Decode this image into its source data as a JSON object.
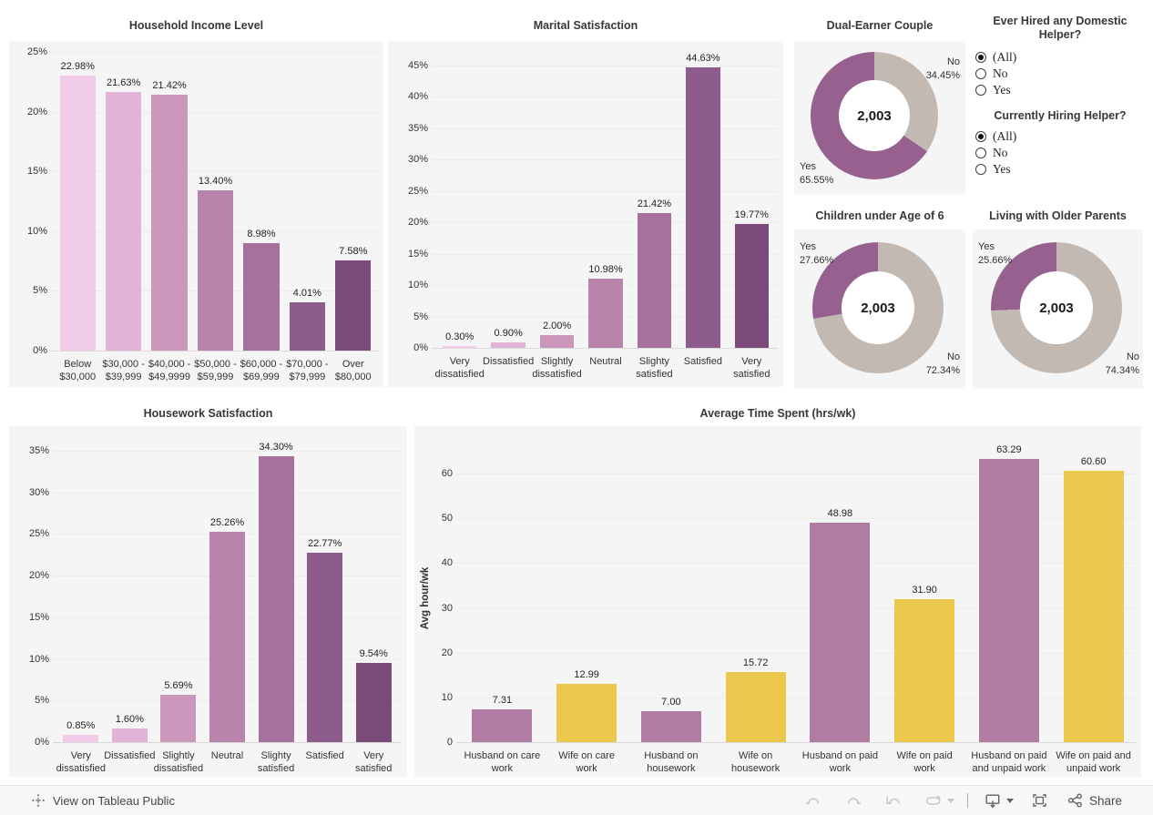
{
  "chart_data": [
    {
      "id": "income",
      "type": "bar",
      "title": "Household Income Level",
      "categories": [
        [
          "Below",
          "$30,000"
        ],
        [
          "$30,000 -",
          "$39,999"
        ],
        [
          "$40,000 -",
          "$49,9999"
        ],
        [
          "$50,000 -",
          "$59,999"
        ],
        [
          "$60,000 -",
          "$69,999"
        ],
        [
          "$70,000 -",
          "$79,999"
        ],
        [
          "Over",
          "$80,000"
        ]
      ],
      "values": [
        22.98,
        21.63,
        21.42,
        13.4,
        8.98,
        4.01,
        7.58
      ],
      "value_labels": [
        "22.98%",
        "21.63%",
        "21.42%",
        "13.40%",
        "8.98%",
        "4.01%",
        "7.58%"
      ],
      "ytick_values": [
        0,
        5,
        10,
        15,
        20,
        25
      ],
      "ytick_labels": [
        "0%",
        "5%",
        "10%",
        "15%",
        "20%",
        "25%"
      ],
      "ylim": [
        0,
        25.3
      ],
      "xlabel": "",
      "ylabel": "",
      "grid": true,
      "legend": "none",
      "colors": [
        "#f0cce8",
        "#e2b2d7",
        "#cb97ba",
        "#b884ac",
        "#a6719c",
        "#8d5c8c",
        "#7b4a78"
      ]
    },
    {
      "id": "marital",
      "type": "bar",
      "title": "Marital Satisfaction",
      "categories": [
        [
          "Very",
          "dissatisfied"
        ],
        [
          "Dissatisfied"
        ],
        [
          "Slightly",
          "dissatisfied"
        ],
        [
          "Neutral"
        ],
        [
          "Slighty",
          "satisfied"
        ],
        [
          "Satisfied"
        ],
        [
          "Very",
          "satisfied"
        ]
      ],
      "values": [
        0.3,
        0.9,
        2.0,
        10.98,
        21.42,
        44.63,
        19.77
      ],
      "value_labels": [
        "0.30%",
        "0.90%",
        "2.00%",
        "10.98%",
        "21.42%",
        "44.63%",
        "19.77%"
      ],
      "ytick_values": [
        0,
        5,
        10,
        15,
        20,
        25,
        30,
        35,
        40,
        45
      ],
      "ytick_labels": [
        "0%",
        "5%",
        "10%",
        "15%",
        "20%",
        "25%",
        "30%",
        "35%",
        "40%",
        "45%"
      ],
      "ylim": [
        0,
        46.7
      ],
      "xlabel": "",
      "ylabel": "",
      "grid": true,
      "legend": "none",
      "colors": [
        "#f0cce8",
        "#e2b2d7",
        "#cb97ba",
        "#b884ac",
        "#a6719c",
        "#8d5c8c",
        "#7b4a78"
      ]
    },
    {
      "id": "housework",
      "type": "bar",
      "title": "Housework Satisfaction",
      "categories": [
        [
          "Very",
          "dissatisfied"
        ],
        [
          "Dissatisfied"
        ],
        [
          "Slightly",
          "dissatisfied"
        ],
        [
          "Neutral"
        ],
        [
          "Slighty",
          "satisfied"
        ],
        [
          "Satisfied"
        ],
        [
          "Very",
          "satisfied"
        ]
      ],
      "values": [
        0.85,
        1.6,
        5.69,
        25.26,
        34.3,
        22.77,
        9.54
      ],
      "value_labels": [
        "0.85%",
        "1.60%",
        "5.69%",
        "25.26%",
        "34.30%",
        "22.77%",
        "9.54%"
      ],
      "ytick_values": [
        0,
        5,
        10,
        15,
        20,
        25,
        30,
        35
      ],
      "ytick_labels": [
        "0%",
        "5%",
        "10%",
        "15%",
        "20%",
        "25%",
        "30%",
        "35%"
      ],
      "ylim": [
        0,
        36.3
      ],
      "xlabel": "",
      "ylabel": "",
      "grid": true,
      "legend": "none",
      "colors": [
        "#f0cce8",
        "#e2b2d7",
        "#cb97ba",
        "#b884ac",
        "#a6719c",
        "#8d5c8c",
        "#7b4a78"
      ]
    },
    {
      "id": "avgtime",
      "type": "bar",
      "title": "Average Time Spent (hrs/wk)",
      "categories": [
        [
          "Husband on care",
          "work"
        ],
        [
          "Wife on care",
          "work"
        ],
        [
          "Husband on",
          "housework"
        ],
        [
          "Wife on",
          "housework"
        ],
        [
          "Husband on paid",
          "work"
        ],
        [
          "Wife on paid",
          "work"
        ],
        [
          "Husband on paid",
          "and unpaid work"
        ],
        [
          "Wife on paid and",
          "unpaid work"
        ]
      ],
      "values": [
        7.31,
        12.99,
        7.0,
        15.72,
        48.98,
        31.9,
        63.29,
        60.6
      ],
      "value_labels": [
        "7.31",
        "12.99",
        "7.00",
        "15.72",
        "48.98",
        "31.90",
        "63.29",
        "60.60"
      ],
      "ytick_values": [
        0,
        10,
        20,
        30,
        40,
        50,
        60
      ],
      "ytick_labels": [
        "0",
        "10",
        "20",
        "30",
        "40",
        "50",
        "60"
      ],
      "ylim": [
        0,
        64.5
      ],
      "xlabel": "",
      "ylabel": "Avg hour/wk",
      "grid": true,
      "legend": "none",
      "colors": [
        "#b17ca2",
        "#ebc84b",
        "#b17ca2",
        "#ebc84b",
        "#b17ca2",
        "#ebc84b",
        "#b17ca2",
        "#ebc84b"
      ]
    },
    {
      "id": "dual_earner",
      "type": "donut",
      "title": "Dual-Earner Couple",
      "center_label": "2,003",
      "slices": [
        {
          "label": "No",
          "value": 34.45,
          "value_label": "34.45%",
          "color": "#c3b9b3"
        },
        {
          "label": "Yes",
          "value": 65.55,
          "value_label": "65.55%",
          "color": "#96618f"
        }
      ]
    },
    {
      "id": "children",
      "type": "donut",
      "title": "Children under Age of 6",
      "center_label": "2,003",
      "slices": [
        {
          "label": "No",
          "value": 72.34,
          "value_label": "72.34%",
          "color": "#c3b9b3"
        },
        {
          "label": "Yes",
          "value": 27.66,
          "value_label": "27.66%",
          "color": "#96618f"
        }
      ]
    },
    {
      "id": "parents",
      "type": "donut",
      "title": "Living with Older Parents",
      "center_label": "2,003",
      "slices": [
        {
          "label": "No",
          "value": 74.34,
          "value_label": "74.34%",
          "color": "#c3b9b3"
        },
        {
          "label": "Yes",
          "value": 25.66,
          "value_label": "25.66%",
          "color": "#96618f"
        }
      ]
    }
  ],
  "filters": [
    {
      "title": "Ever Hired any Domestic Helper?",
      "options": [
        {
          "label": "(All)",
          "selected": true
        },
        {
          "label": "No",
          "selected": false
        },
        {
          "label": "Yes",
          "selected": false
        }
      ]
    },
    {
      "title": "Currently Hiring Helper?",
      "options": [
        {
          "label": "(All)",
          "selected": true
        },
        {
          "label": "No",
          "selected": false
        },
        {
          "label": "Yes",
          "selected": false
        }
      ]
    }
  ],
  "toolbar": {
    "view_link_label": "View on Tableau Public",
    "share_label": "Share",
    "icons": [
      "tableau-logo",
      "undo",
      "redo",
      "revert",
      "refresh",
      "download",
      "fullscreen",
      "share"
    ]
  },
  "style": {
    "panel_bg": "#f5f5f5",
    "donut_purple": "#96618f",
    "donut_gray": "#c3b9b3",
    "bar_purple": "#b17ca2",
    "bar_yellow": "#ebc84b"
  }
}
